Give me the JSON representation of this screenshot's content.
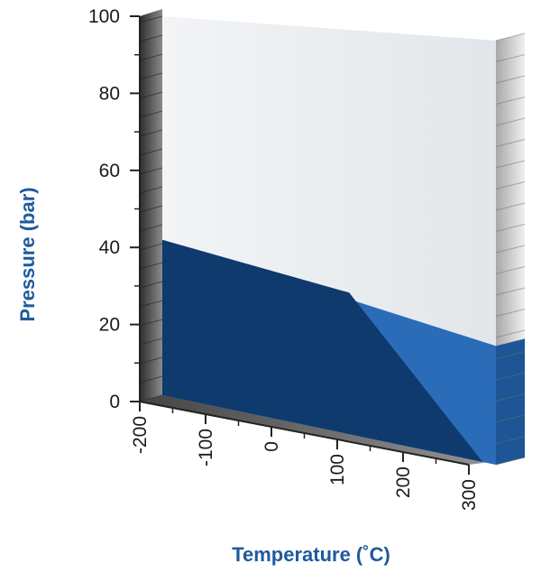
{
  "chart_data": {
    "type": "area",
    "xlabel": "Temperature (˚C)",
    "ylabel": "Pressure (bar)",
    "x_ticks": [
      "-200",
      "-100",
      "0",
      "100",
      "200",
      "300"
    ],
    "y_ticks": [
      "0",
      "20",
      "40",
      "60",
      "80",
      "100"
    ],
    "xlim": [
      -200,
      300
    ],
    "ylim": [
      0,
      100
    ],
    "series": [
      {
        "x": [
          -200,
          300
        ],
        "y": [
          41,
          28
        ],
        "color": "#2a6cb8"
      },
      {
        "x": [
          -200,
          80,
          280
        ],
        "y": [
          41,
          35,
          0
        ],
        "color": "#0e3a6e"
      }
    ],
    "background_color": "#e6eaee",
    "grid": false
  }
}
